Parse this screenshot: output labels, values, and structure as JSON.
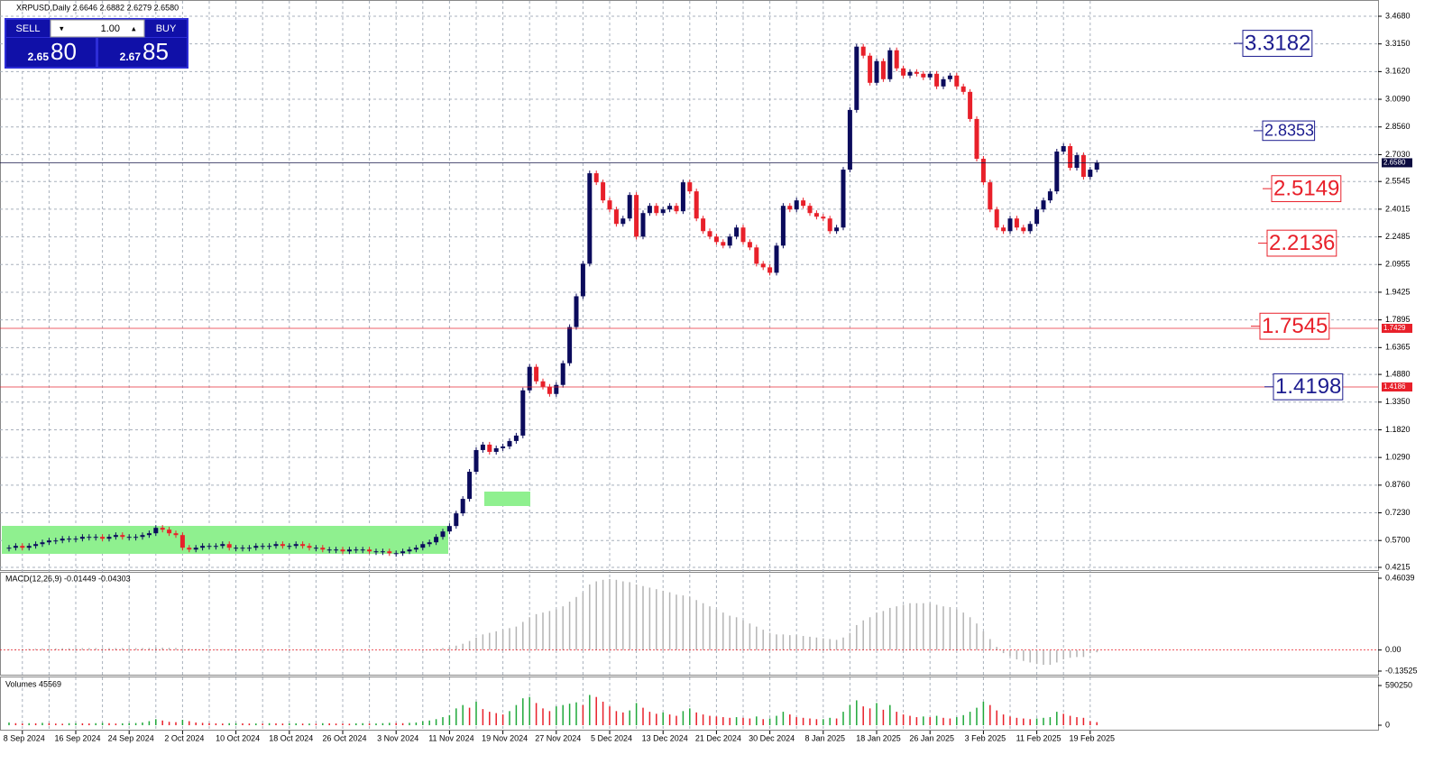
{
  "chart_data": {
    "type": "candlestick",
    "title": "XRPUSD,Daily  2.6646 2.6882 2.6279 2.6580",
    "trade": {
      "sell": "SELL",
      "buy": "BUY",
      "lot": "1.00",
      "sell_small": "2.65",
      "sell_big": "80",
      "buy_small": "2.67",
      "buy_big": "85"
    },
    "categories": [
      null,
      null,
      "8 Sep 2024",
      null,
      null,
      null,
      null,
      null,
      null,
      null,
      "16 Sep 2024",
      null,
      null,
      null,
      null,
      null,
      null,
      null,
      "24 Sep 2024",
      null,
      null,
      null,
      null,
      null,
      null,
      null,
      "2 Oct 2024",
      null,
      null,
      null,
      null,
      null,
      null,
      null,
      "10 Oct 2024",
      null,
      null,
      null,
      null,
      null,
      null,
      null,
      "18 Oct 2024",
      null,
      null,
      null,
      null,
      null,
      null,
      null,
      "26 Oct 2024",
      null,
      null,
      null,
      null,
      null,
      null,
      null,
      "3 Nov 2024",
      null,
      null,
      null,
      null,
      null,
      null,
      null,
      "11 Nov 2024",
      null,
      null,
      null,
      null,
      null,
      null,
      null,
      "19 Nov 2024",
      null,
      null,
      null,
      null,
      null,
      null,
      null,
      "27 Nov 2024",
      null,
      null,
      null,
      null,
      null,
      null,
      null,
      "5 Dec 2024",
      null,
      null,
      null,
      null,
      null,
      null,
      null,
      "13 Dec 2024",
      null,
      null,
      null,
      null,
      null,
      null,
      null,
      "21 Dec 2024",
      null,
      null,
      null,
      null,
      null,
      null,
      null,
      "30 Dec 2024",
      null,
      null,
      null,
      null,
      null,
      null,
      null,
      "8 Jan 2025",
      null,
      null,
      null,
      null,
      null,
      null,
      null,
      "18 Jan 2025",
      null,
      null,
      null,
      null,
      null,
      null,
      null,
      "26 Jan 2025",
      null,
      null,
      null,
      null,
      null,
      null,
      null,
      "3 Feb 2025",
      null,
      null,
      null,
      null,
      null,
      null,
      null,
      "11 Feb 2025",
      null,
      null,
      null,
      null,
      null,
      null,
      null,
      "19 Feb 2025",
      null
    ],
    "closes": [
      0.53,
      0.54,
      0.53,
      0.54,
      0.55,
      0.56,
      0.57,
      0.57,
      0.58,
      0.58,
      0.58,
      0.59,
      0.59,
      0.59,
      0.58,
      0.59,
      0.6,
      0.59,
      0.59,
      0.59,
      0.6,
      0.61,
      0.64,
      0.63,
      0.61,
      0.6,
      0.53,
      0.52,
      0.53,
      0.54,
      0.54,
      0.54,
      0.55,
      0.53,
      0.53,
      0.53,
      0.53,
      0.54,
      0.54,
      0.54,
      0.55,
      0.54,
      0.54,
      0.55,
      0.54,
      0.53,
      0.53,
      0.52,
      0.52,
      0.52,
      0.51,
      0.52,
      0.52,
      0.52,
      0.51,
      0.51,
      0.51,
      0.5,
      0.5,
      0.51,
      0.52,
      0.53,
      0.55,
      0.56,
      0.59,
      0.62,
      0.65,
      0.72,
      0.8,
      0.95,
      1.07,
      1.1,
      1.06,
      1.08,
      1.09,
      1.12,
      1.15,
      1.4,
      1.53,
      1.45,
      1.42,
      1.38,
      1.43,
      1.55,
      1.75,
      1.92,
      2.1,
      2.6,
      2.55,
      2.45,
      2.4,
      2.32,
      2.35,
      2.48,
      2.25,
      2.38,
      2.42,
      2.38,
      2.4,
      2.42,
      2.39,
      2.55,
      2.5,
      2.35,
      2.28,
      2.25,
      2.22,
      2.2,
      2.25,
      2.3,
      2.22,
      2.19,
      2.1,
      2.08,
      2.05,
      2.2,
      2.42,
      2.4,
      2.45,
      2.42,
      2.38,
      2.36,
      2.35,
      2.28,
      2.3,
      2.62,
      2.95,
      3.3,
      3.25,
      3.1,
      3.22,
      3.12,
      3.28,
      3.18,
      3.14,
      3.16,
      3.15,
      3.13,
      3.15,
      3.08,
      3.12,
      3.14,
      3.08,
      3.05,
      2.9,
      2.68,
      2.55,
      2.4,
      2.3,
      2.28,
      2.35,
      2.3,
      2.28,
      2.32,
      2.4,
      2.45,
      2.5,
      2.72,
      2.75,
      2.63,
      2.7,
      2.58,
      2.62,
      2.658
    ],
    "up_color": "#0b0b5c",
    "down_color": "#e8202a",
    "ylim": [
      0.4215,
      3.468
    ],
    "yticks": [
      {
        "value": 3.468,
        "label": "3.4680"
      },
      {
        "value": 3.315,
        "label": "3.3150"
      },
      {
        "value": 3.162,
        "label": "3.1620"
      },
      {
        "value": 3.009,
        "label": "3.0090"
      },
      {
        "value": 2.856,
        "label": "2.8560"
      },
      {
        "value": 2.703,
        "label": "2.7030"
      },
      2.5545,
      {
        "value": 2.4015,
        "label": "2.4015"
      },
      2.2485,
      2.0955,
      1.9425,
      1.7895,
      1.6365,
      {
        "value": 1.488,
        "label": "1.4880"
      },
      {
        "value": 1.335,
        "label": "1.3350"
      },
      {
        "value": 1.182,
        "label": "1.1820"
      },
      {
        "value": 1.029,
        "label": "1.0290"
      },
      {
        "value": 0.876,
        "label": "0.8760"
      },
      {
        "value": 0.723,
        "label": "0.7230"
      },
      {
        "value": 0.57,
        "label": "0.5700"
      },
      0.4215
    ],
    "grid": true,
    "levels": [
      {
        "value": 3.3182,
        "color": "#1c1c8f"
      },
      {
        "value": 2.8353,
        "color": "#1c1c8f"
      },
      {
        "value": 2.5149,
        "color": "#e8202a"
      },
      {
        "value": 2.2136,
        "color": "#e8202a"
      },
      {
        "value": 1.7545,
        "color": "#e8202a"
      },
      {
        "value": 1.4198,
        "color": "#1c1c8f"
      }
    ],
    "markers": [
      {
        "value": 2.658,
        "label": "2.6580",
        "color": "#0b0b40"
      },
      {
        "value": 1.7429,
        "label": "1.7429",
        "color": "#e8202a"
      },
      {
        "value": 1.4186,
        "label": "1.4186",
        "color": "#e8202a"
      }
    ],
    "macd": {
      "label": "MACD(12,26,9) -0.01449 -0.04303",
      "color": "#b4b4b4",
      "ylim": [
        -0.13525,
        0.46039
      ],
      "yticks": [
        0.46039,
        {
          "value": 0,
          "label": "0.00"
        },
        -0.13525
      ],
      "values": [
        0.005,
        0.005,
        0.006,
        0.007,
        0.008,
        0.009,
        0.01,
        0.01,
        0.011,
        0.011,
        0.012,
        0.012,
        0.012,
        0.012,
        0.012,
        0.012,
        0.012,
        0.012,
        0.012,
        0.012,
        0.012,
        0.013,
        0.015,
        0.015,
        0.014,
        0.013,
        0.01,
        0.008,
        0.007,
        0.006,
        0.006,
        0.005,
        0.005,
        0.005,
        0.004,
        0.004,
        0.004,
        0.004,
        0.004,
        0.004,
        0.004,
        0.004,
        0.004,
        0.004,
        0.003,
        0.003,
        0.002,
        0.002,
        0.001,
        0.001,
        0.0,
        0.0,
        0.0,
        -0.001,
        -0.001,
        -0.002,
        -0.002,
        -0.002,
        -0.002,
        -0.002,
        -0.001,
        0.0,
        0.002,
        0.004,
        0.008,
        0.012,
        0.018,
        0.028,
        0.04,
        0.058,
        0.08,
        0.1,
        0.11,
        0.12,
        0.13,
        0.14,
        0.15,
        0.18,
        0.21,
        0.23,
        0.24,
        0.25,
        0.26,
        0.28,
        0.31,
        0.34,
        0.37,
        0.42,
        0.44,
        0.45,
        0.455,
        0.45,
        0.44,
        0.435,
        0.42,
        0.41,
        0.4,
        0.39,
        0.38,
        0.37,
        0.355,
        0.35,
        0.34,
        0.32,
        0.3,
        0.28,
        0.26,
        0.24,
        0.22,
        0.21,
        0.19,
        0.17,
        0.15,
        0.13,
        0.11,
        0.1,
        0.1,
        0.095,
        0.095,
        0.09,
        0.085,
        0.08,
        0.075,
        0.07,
        0.065,
        0.08,
        0.11,
        0.16,
        0.19,
        0.21,
        0.24,
        0.25,
        0.27,
        0.28,
        0.29,
        0.3,
        0.3,
        0.3,
        0.3,
        0.29,
        0.28,
        0.275,
        0.26,
        0.24,
        0.21,
        0.17,
        0.12,
        0.07,
        0.02,
        -0.02,
        -0.04,
        -0.06,
        -0.07,
        -0.08,
        -0.09,
        -0.095,
        -0.095,
        -0.08,
        -0.06,
        -0.05,
        -0.045,
        -0.045,
        -0.02,
        -0.01449
      ]
    },
    "volume": {
      "label": "Volumes 45569",
      "up_color": "#1fa83a",
      "down_color": "#e8202a",
      "ylim": [
        0,
        590250
      ],
      "yticks": [
        590250,
        0
      ],
      "values": [
        40000,
        30000,
        25000,
        30000,
        28000,
        35000,
        30000,
        25000,
        22000,
        30000,
        30000,
        28000,
        26000,
        30000,
        35000,
        30000,
        25000,
        28000,
        30000,
        32000,
        40000,
        60000,
        90000,
        70000,
        50000,
        45000,
        80000,
        60000,
        40000,
        35000,
        30000,
        28000,
        25000,
        30000,
        30000,
        28000,
        25000,
        26000,
        24000,
        30000,
        28000,
        25000,
        26000,
        28000,
        24000,
        25000,
        22000,
        30000,
        28000,
        25000,
        24000,
        22000,
        28000,
        30000,
        25000,
        26000,
        30000,
        35000,
        32000,
        30000,
        35000,
        40000,
        60000,
        70000,
        90000,
        120000,
        150000,
        250000,
        300000,
        260000,
        350000,
        240000,
        200000,
        180000,
        160000,
        210000,
        300000,
        400000,
        420000,
        330000,
        250000,
        210000,
        280000,
        300000,
        320000,
        340000,
        300000,
        450000,
        420000,
        350000,
        280000,
        210000,
        190000,
        220000,
        330000,
        260000,
        200000,
        170000,
        190000,
        160000,
        140000,
        210000,
        250000,
        190000,
        160000,
        140000,
        130000,
        120000,
        110000,
        120000,
        110000,
        100000,
        130000,
        90000,
        100000,
        140000,
        200000,
        160000,
        120000,
        110000,
        100000,
        90000,
        90000,
        110000,
        100000,
        200000,
        300000,
        370000,
        280000,
        250000,
        330000,
        230000,
        300000,
        200000,
        160000,
        140000,
        120000,
        130000,
        120000,
        140000,
        110000,
        100000,
        120000,
        150000,
        200000,
        260000,
        350000,
        300000,
        220000,
        160000,
        130000,
        110000,
        100000,
        90000,
        100000,
        110000,
        120000,
        200000,
        170000,
        140000,
        120000,
        110000,
        60000,
        45569
      ]
    }
  }
}
